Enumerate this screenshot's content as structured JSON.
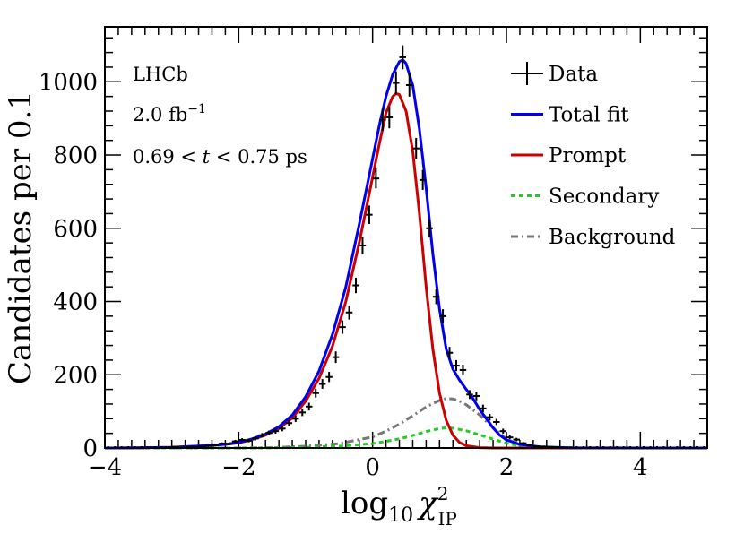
{
  "chart_data": {
    "type": "line",
    "xlabel": "log₁₀ χ²_IP",
    "xlabel_parts": {
      "main": "log",
      "sub": "10",
      "symbol": "χ",
      "sup": "2",
      "symbol_sub": "IP"
    },
    "ylabel": "Candidates per 0.1",
    "xlim": [
      -4,
      5
    ],
    "ylim": [
      0,
      1150
    ],
    "x_ticks": [
      -4,
      -2,
      0,
      2,
      4
    ],
    "x_tick_labels": [
      "−4",
      "−2",
      "0",
      "2",
      "4"
    ],
    "y_ticks": [
      0,
      200,
      400,
      600,
      800,
      1000
    ],
    "y_tick_labels": [
      "0",
      "200",
      "400",
      "600",
      "800",
      "1000"
    ],
    "annotations": {
      "experiment": "LHCb",
      "luminosity": "2.0 fb",
      "luminosity_sup": "−1",
      "range_prefix": "0.69 < ",
      "range_var": "t",
      "range_suffix": " < 0.75 ps"
    },
    "legend": [
      {
        "label": "Data",
        "color": "#000000",
        "style": "errorbar"
      },
      {
        "label": "Total fit",
        "color": "#0000ee",
        "style": "solid"
      },
      {
        "label": "Prompt",
        "color": "#cc0000",
        "style": "solid"
      },
      {
        "label": "Secondary",
        "color": "#22cc22",
        "style": "dashed"
      },
      {
        "label": "Background",
        "color": "#777777",
        "style": "dashdot"
      }
    ],
    "series": [
      {
        "name": "Data",
        "kind": "points",
        "color": "#000000",
        "x": [
          -3.95,
          -3.85,
          -3.75,
          -3.65,
          -3.55,
          -3.45,
          -3.35,
          -3.25,
          -3.15,
          -3.05,
          -2.95,
          -2.85,
          -2.75,
          -2.65,
          -2.55,
          -2.45,
          -2.35,
          -2.25,
          -2.15,
          -2.05,
          -1.95,
          -1.85,
          -1.75,
          -1.65,
          -1.55,
          -1.45,
          -1.35,
          -1.25,
          -1.15,
          -1.05,
          -0.95,
          -0.85,
          -0.75,
          -0.65,
          -0.55,
          -0.45,
          -0.35,
          -0.25,
          -0.15,
          -0.05,
          0.05,
          0.15,
          0.25,
          0.35,
          0.45,
          0.55,
          0.65,
          0.75,
          0.85,
          0.95,
          1.05,
          1.15,
          1.25,
          1.35,
          1.45,
          1.55,
          1.65,
          1.75,
          1.85,
          1.95,
          2.05,
          2.15,
          2.25,
          2.35,
          2.45,
          2.55,
          2.65,
          2.75,
          2.85,
          2.95,
          3.05,
          3.15,
          3.25,
          3.35,
          3.45,
          3.55,
          3.65,
          3.75,
          3.85,
          3.95,
          4.05,
          4.15,
          4.25,
          4.35,
          4.45,
          4.55,
          4.65,
          4.75,
          4.85,
          4.95
        ],
        "y": [
          0,
          0,
          0,
          0,
          0,
          0,
          1,
          0,
          0,
          2,
          3,
          1,
          2,
          3,
          4,
          6,
          7,
          12,
          11,
          18,
          22,
          20,
          26,
          35,
          41,
          46,
          53,
          68,
          80,
          97,
          113,
          150,
          175,
          194,
          248,
          330,
          370,
          444,
          553,
          637,
          736,
          896,
          903,
          997,
          1067,
          991,
          818,
          732,
          600,
          413,
          360,
          260,
          225,
          213,
          146,
          142,
          108,
          84,
          71,
          46,
          29,
          23,
          13,
          8,
          5,
          4,
          3,
          2,
          1,
          1,
          0,
          0,
          0,
          0,
          0,
          0,
          0,
          0,
          0,
          0,
          0,
          0,
          0,
          0,
          0,
          0,
          0,
          0,
          0,
          0
        ],
        "err": [
          0,
          0,
          0,
          0,
          0,
          0,
          1,
          0,
          0,
          1.4,
          1.7,
          1,
          1.4,
          1.7,
          2,
          2.4,
          2.6,
          3.5,
          3.3,
          4.2,
          4.7,
          4.5,
          5.1,
          5.9,
          6.4,
          6.8,
          7.3,
          8.2,
          8.9,
          9.8,
          10.6,
          12.2,
          13.2,
          13.9,
          15.7,
          18.2,
          19.2,
          21.1,
          23.5,
          25.2,
          27.1,
          29.9,
          30,
          31.6,
          32.7,
          31.5,
          28.6,
          27.1,
          24.5,
          20.3,
          19,
          16.1,
          15,
          14.6,
          12.1,
          11.9,
          10.4,
          9.2,
          8.4,
          6.8,
          5.4,
          4.8,
          3.6,
          2.8,
          2.2,
          2,
          1.7,
          1.4,
          1,
          1,
          0,
          0,
          0,
          0,
          0,
          0,
          0,
          0,
          0,
          0,
          0,
          0,
          0,
          0,
          0,
          0,
          0,
          0,
          0,
          0
        ]
      },
      {
        "name": "Total fit",
        "kind": "line",
        "color": "#0000ee",
        "x": [
          -4.0,
          -3.5,
          -3.0,
          -2.5,
          -2.2,
          -2.0,
          -1.8,
          -1.6,
          -1.4,
          -1.2,
          -1.0,
          -0.8,
          -0.6,
          -0.4,
          -0.2,
          0.0,
          0.1,
          0.2,
          0.3,
          0.4,
          0.45,
          0.5,
          0.6,
          0.7,
          0.8,
          0.9,
          1.0,
          1.1,
          1.2,
          1.3,
          1.4,
          1.5,
          1.6,
          1.7,
          1.8,
          1.9,
          2.0,
          2.2,
          2.5,
          3.0,
          4.0,
          5.0
        ],
        "y": [
          0,
          0.5,
          2,
          6,
          10,
          15,
          25,
          38,
          58,
          90,
          140,
          210,
          310,
          440,
          610,
          790,
          880,
          960,
          1020,
          1055,
          1060,
          1050,
          990,
          870,
          710,
          530,
          380,
          270,
          215,
          185,
          160,
          135,
          105,
          80,
          55,
          35,
          22,
          10,
          3,
          0.5,
          0,
          0
        ]
      },
      {
        "name": "Prompt",
        "kind": "line",
        "color": "#cc0000",
        "x": [
          -4.0,
          -3.5,
          -3.0,
          -2.5,
          -2.2,
          -2.0,
          -1.8,
          -1.6,
          -1.4,
          -1.2,
          -1.0,
          -0.8,
          -0.6,
          -0.4,
          -0.2,
          0.0,
          0.1,
          0.2,
          0.3,
          0.35,
          0.4,
          0.5,
          0.6,
          0.7,
          0.8,
          0.9,
          1.0,
          1.1,
          1.2,
          1.3,
          1.4,
          1.6,
          1.8,
          2.0,
          2.5,
          5.0
        ],
        "y": [
          0,
          0.5,
          2,
          6,
          10,
          14,
          23,
          35,
          53,
          82,
          128,
          190,
          278,
          400,
          560,
          740,
          830,
          915,
          960,
          968,
          965,
          920,
          810,
          640,
          440,
          270,
          150,
          75,
          35,
          15,
          6,
          1,
          0,
          0,
          0,
          0
        ]
      },
      {
        "name": "Secondary",
        "kind": "line",
        "color": "#22cc22",
        "x": [
          -4.0,
          -2.0,
          -1.5,
          -1.0,
          -0.5,
          0.0,
          0.2,
          0.4,
          0.6,
          0.8,
          1.0,
          1.1,
          1.2,
          1.4,
          1.6,
          1.8,
          2.0,
          2.2,
          2.5,
          3.0,
          5.0
        ],
        "y": [
          0,
          0,
          0.5,
          2,
          5,
          12,
          18,
          25,
          34,
          45,
          53,
          55,
          54,
          47,
          36,
          24,
          13,
          6,
          2,
          0,
          0
        ]
      },
      {
        "name": "Background",
        "kind": "line",
        "color": "#777777",
        "x": [
          -4.0,
          -2.0,
          -1.5,
          -1.0,
          -0.5,
          0.0,
          0.2,
          0.4,
          0.6,
          0.8,
          1.0,
          1.1,
          1.2,
          1.3,
          1.4,
          1.6,
          1.8,
          2.0,
          2.2,
          2.5,
          3.0,
          5.0
        ],
        "y": [
          0,
          0,
          1,
          5,
          12,
          30,
          46,
          65,
          88,
          112,
          130,
          135,
          134,
          128,
          118,
          90,
          55,
          25,
          8,
          2,
          0,
          0
        ]
      }
    ]
  }
}
